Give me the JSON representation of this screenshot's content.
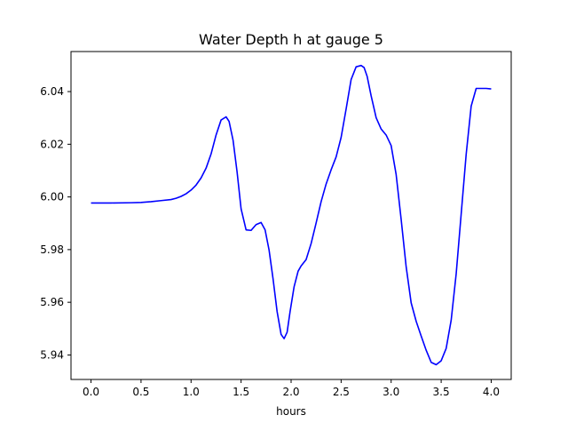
{
  "chart_data": {
    "type": "line",
    "title": "Water Depth h at gauge 5",
    "xlabel": "hours",
    "ylabel": "",
    "xlim": [
      -0.2,
      4.2
    ],
    "ylim": [
      5.9307,
      6.0552
    ],
    "xticks": [
      0.0,
      0.5,
      1.0,
      1.5,
      2.0,
      2.5,
      3.0,
      3.5,
      4.0
    ],
    "xtick_labels": [
      "0.0",
      "0.5",
      "1.0",
      "1.5",
      "2.0",
      "2.5",
      "3.0",
      "3.5",
      "4.0"
    ],
    "yticks": [
      5.94,
      5.96,
      5.98,
      6.0,
      6.02,
      6.04
    ],
    "ytick_labels": [
      "5.94",
      "5.96",
      "5.98",
      "6.00",
      "6.02",
      "6.04"
    ],
    "grid": false,
    "series": [
      {
        "color": "#0000ff",
        "x": [
          0.0,
          0.2,
          0.4,
          0.5,
          0.6,
          0.7,
          0.8,
          0.85,
          0.9,
          0.95,
          1.0,
          1.05,
          1.1,
          1.15,
          1.2,
          1.25,
          1.3,
          1.35,
          1.38,
          1.42,
          1.46,
          1.5,
          1.55,
          1.6,
          1.65,
          1.7,
          1.74,
          1.78,
          1.82,
          1.86,
          1.9,
          1.93,
          1.96,
          1.99,
          2.03,
          2.07,
          2.1,
          2.15,
          2.2,
          2.25,
          2.3,
          2.35,
          2.4,
          2.45,
          2.5,
          2.55,
          2.6,
          2.65,
          2.7,
          2.73,
          2.76,
          2.8,
          2.85,
          2.9,
          2.95,
          3.0,
          3.05,
          3.1,
          3.15,
          3.2,
          3.25,
          3.3,
          3.35,
          3.4,
          3.45,
          3.5,
          3.55,
          3.6,
          3.65,
          3.7,
          3.75,
          3.8,
          3.85,
          3.9,
          3.95,
          4.0
        ],
        "y": [
          5.9977,
          5.9977,
          5.9978,
          5.9979,
          5.9982,
          5.9986,
          5.999,
          5.9995,
          6.0002,
          6.0012,
          6.0026,
          6.0045,
          6.0072,
          6.0109,
          6.0163,
          6.0235,
          6.0292,
          6.0304,
          6.0287,
          6.0215,
          6.0095,
          5.9955,
          5.9875,
          5.9873,
          5.9895,
          5.9903,
          5.9875,
          5.9798,
          5.9688,
          5.9565,
          5.9478,
          5.9462,
          5.9486,
          5.9565,
          5.9659,
          5.9718,
          5.9738,
          5.9762,
          5.9823,
          5.9901,
          5.9982,
          6.0049,
          6.0103,
          6.0152,
          6.0226,
          6.0334,
          6.0446,
          6.0494,
          6.0499,
          6.0491,
          6.0458,
          6.0384,
          6.0301,
          6.0258,
          6.0235,
          6.0195,
          6.0085,
          5.9915,
          5.9735,
          5.9598,
          5.9528,
          5.9472,
          5.9418,
          5.9372,
          5.9363,
          5.9378,
          5.9425,
          5.9532,
          5.9708,
          5.9935,
          6.0162,
          6.0345,
          6.0412,
          6.0412,
          6.0412,
          6.041
        ]
      }
    ]
  }
}
